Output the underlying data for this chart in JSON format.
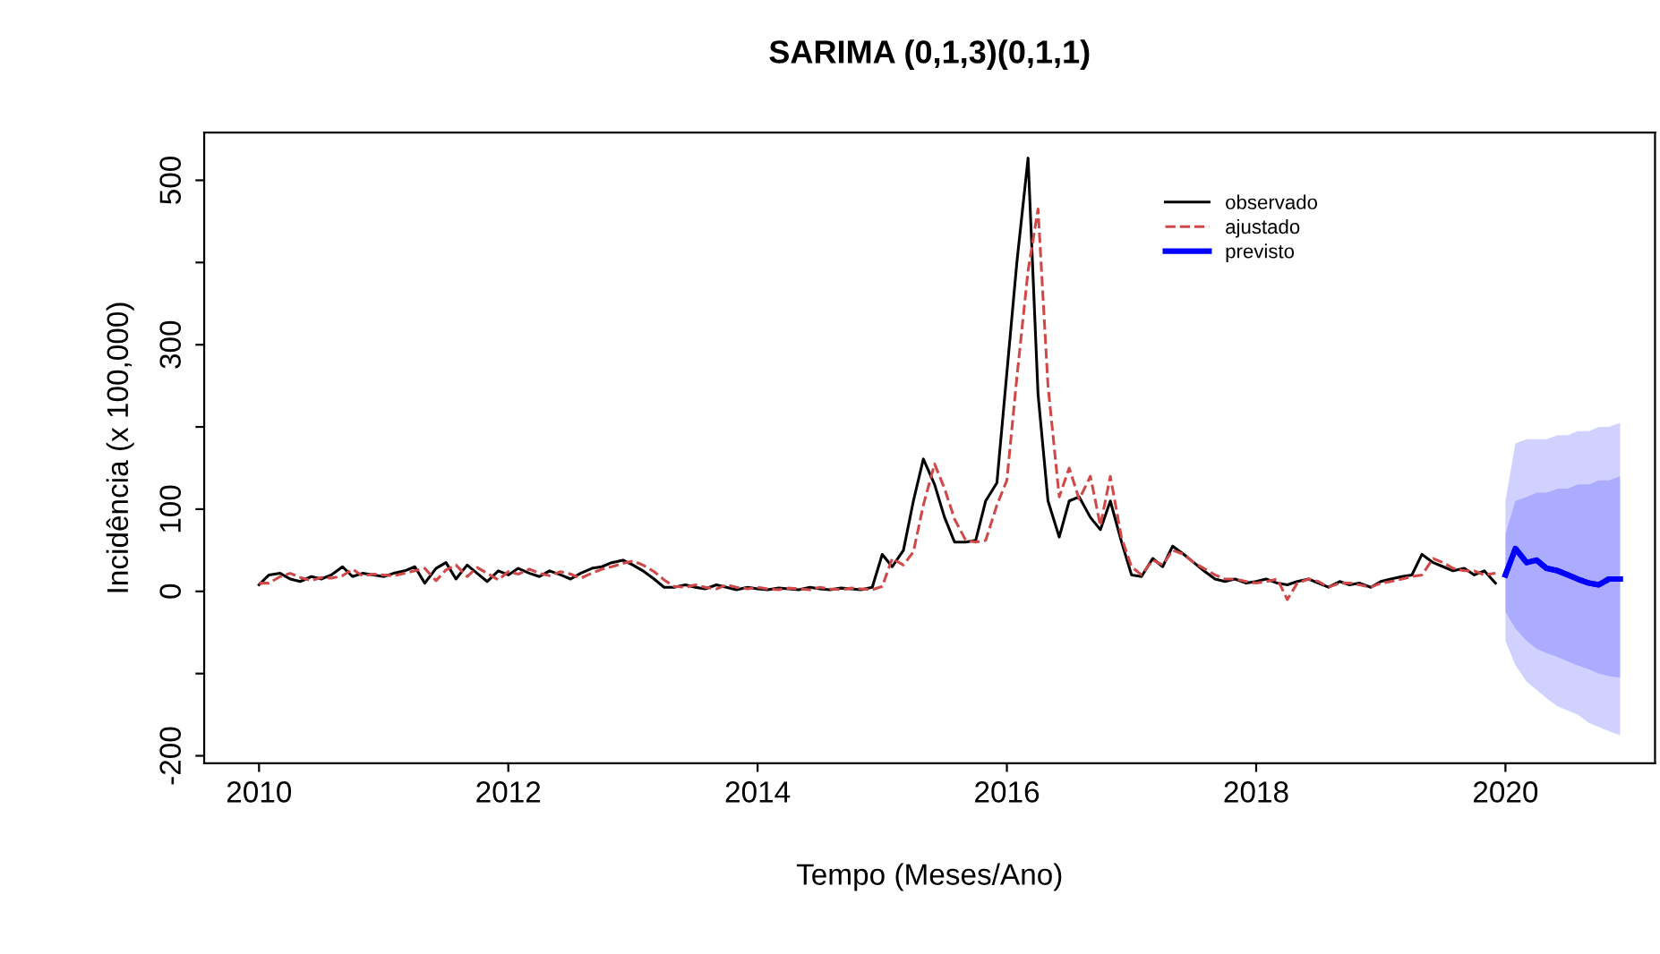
{
  "chart_data": {
    "type": "line",
    "title": "SARIMA (0,1,3)(0,1,1)",
    "xlabel": "Tempo (Meses/Ano)",
    "ylabel": "Incidência (x 100,000)",
    "x": [
      2010,
      2010.08,
      2010.17,
      2010.25,
      2010.33,
      2010.42,
      2010.5,
      2010.58,
      2010.67,
      2010.75,
      2010.83,
      2010.92,
      2011,
      2011.08,
      2011.17,
      2011.25,
      2011.33,
      2011.42,
      2011.5,
      2011.58,
      2011.67,
      2011.75,
      2011.83,
      2011.92,
      2012,
      2012.08,
      2012.17,
      2012.25,
      2012.33,
      2012.42,
      2012.5,
      2012.58,
      2012.67,
      2012.75,
      2012.83,
      2012.92,
      2013,
      2013.08,
      2013.17,
      2013.25,
      2013.33,
      2013.42,
      2013.5,
      2013.58,
      2013.67,
      2013.75,
      2013.83,
      2013.92,
      2014,
      2014.08,
      2014.17,
      2014.25,
      2014.33,
      2014.42,
      2014.5,
      2014.58,
      2014.67,
      2014.75,
      2014.83,
      2014.92,
      2015,
      2015.08,
      2015.17,
      2015.25,
      2015.33,
      2015.42,
      2015.5,
      2015.58,
      2015.67,
      2015.75,
      2015.83,
      2015.92,
      2016,
      2016.08,
      2016.17,
      2016.25,
      2016.33,
      2016.42,
      2016.5,
      2016.58,
      2016.67,
      2016.75,
      2016.83,
      2016.92,
      2017,
      2017.08,
      2017.17,
      2017.25,
      2017.33,
      2017.42,
      2017.5,
      2017.58,
      2017.67,
      2017.75,
      2017.83,
      2017.92,
      2018,
      2018.08,
      2018.17,
      2018.25,
      2018.33,
      2018.42,
      2018.5,
      2018.58,
      2018.67,
      2018.75,
      2018.83,
      2018.92,
      2019,
      2019.08,
      2019.17,
      2019.25,
      2019.33,
      2019.42,
      2019.5,
      2019.58,
      2019.67,
      2019.75,
      2019.83,
      2019.92
    ],
    "series": [
      {
        "name": "observado",
        "color": "#000000",
        "line_style": "solid",
        "values": [
          8,
          20,
          22,
          15,
          12,
          18,
          15,
          20,
          30,
          18,
          22,
          20,
          18,
          22,
          25,
          30,
          10,
          28,
          35,
          15,
          32,
          22,
          12,
          25,
          20,
          28,
          22,
          18,
          25,
          20,
          15,
          22,
          28,
          30,
          35,
          38,
          32,
          25,
          15,
          5,
          5,
          8,
          5,
          3,
          8,
          5,
          2,
          5,
          3,
          2,
          4,
          3,
          2,
          5,
          3,
          2,
          4,
          3,
          2,
          5,
          45,
          30,
          50,
          110,
          161,
          130,
          90,
          60,
          60,
          62,
          110,
          132,
          266,
          400,
          527,
          240,
          110,
          66,
          110,
          115,
          90,
          75,
          110,
          60,
          20,
          18,
          40,
          30,
          55,
          45,
          35,
          25,
          15,
          12,
          15,
          10,
          12,
          15,
          10,
          8,
          12,
          15,
          10,
          5,
          12,
          8,
          10,
          5,
          12,
          15,
          18,
          20,
          45,
          35,
          30,
          25,
          28,
          20,
          25,
          10
        ]
      },
      {
        "name": "ajustado",
        "color": "#d04848",
        "line_style": "dashed",
        "values": [
          10,
          10,
          18,
          22,
          17,
          13,
          17,
          16,
          19,
          27,
          19,
          21,
          20,
          19,
          22,
          25,
          28,
          13,
          26,
          32,
          18,
          29,
          22,
          14,
          24,
          21,
          27,
          22,
          19,
          24,
          21,
          16,
          22,
          27,
          30,
          34,
          37,
          32,
          24,
          14,
          6,
          5,
          8,
          5,
          3,
          8,
          5,
          3,
          5,
          3,
          2,
          4,
          3,
          2,
          5,
          3,
          2,
          4,
          3,
          2,
          6,
          40,
          32,
          48,
          105,
          155,
          125,
          88,
          62,
          60,
          62,
          105,
          135,
          260,
          390,
          465,
          250,
          115,
          150,
          112,
          140,
          80,
          140,
          65,
          30,
          20,
          38,
          32,
          50,
          45,
          35,
          28,
          20,
          15,
          15,
          12,
          10,
          12,
          15,
          -10,
          10,
          15,
          12,
          5,
          10,
          10,
          8,
          5,
          10,
          12,
          15,
          18,
          20,
          40,
          35,
          28,
          25,
          25,
          20,
          22
        ]
      },
      {
        "color": "#0000ff",
        "line_style": "solid",
        "x": [
          2020,
          2020.08,
          2020.17,
          2020.25,
          2020.33,
          2020.42,
          2020.5,
          2020.58,
          2020.67,
          2020.75,
          2020.83,
          2020.92
        ],
        "values": [
          20,
          52,
          35,
          38,
          28,
          25,
          20,
          15,
          10,
          8,
          15,
          15
        ],
        "lower": [
          -60,
          -90,
          -110,
          -120,
          -130,
          -140,
          -145,
          -150,
          -160,
          -165,
          -170,
          -175
        ],
        "upper": [
          110,
          180,
          185,
          185,
          185,
          190,
          190,
          195,
          195,
          200,
          200,
          205
        ]
      },
      {
        "name": "previsto",
        "color": "#0000ff",
        "line_style": "solid",
        "x": [
          2020,
          2020.08,
          2020.17,
          2020.25,
          2020.33,
          2020.42,
          2020.5,
          2020.58,
          2020.67,
          2020.75,
          2020.83,
          2020.92
        ],
        "values": [
          20,
          52,
          35,
          38,
          28,
          25,
          20,
          15,
          10,
          8,
          15,
          15
        ],
        "lower": [
          -25,
          -45,
          -60,
          -70,
          -75,
          -80,
          -85,
          -90,
          -95,
          -100,
          -103,
          -105
        ],
        "upper": [
          70,
          110,
          115,
          120,
          120,
          125,
          125,
          130,
          130,
          135,
          135,
          140
        ]
      }
    ],
    "xlim": [
      2009.56,
      2021.2
    ],
    "xticks": [
      2010,
      2012,
      2014,
      2016,
      2018,
      2020
    ],
    "ylim": [
      -209,
      558
    ],
    "yticks": [
      -200,
      {
        "value": -100,
        "label": null
      },
      0,
      100,
      {
        "value": 200,
        "label": null
      },
      300,
      {
        "value": 400,
        "label": null
      },
      500
    ],
    "grid": false,
    "legend": "top right"
  }
}
